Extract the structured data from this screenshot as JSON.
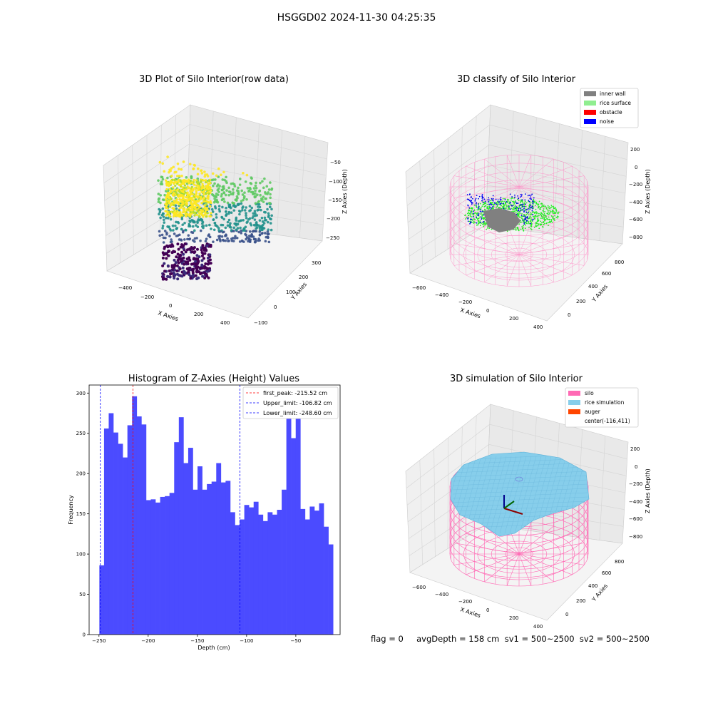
{
  "suptitle": "HSGGD02 2024-11-30 04:25:35",
  "footer": "flag = 0     avgDepth = 158 cm  sv1 = 500~2500  sv2 = 500~2500",
  "chart_data": [
    {
      "type": "scatter",
      "title": "3D Plot of Silo Interior(row data)",
      "xlabel": "X Axies",
      "ylabel": "Y Axies",
      "zlabel": "Z Axies (Depth)",
      "x_ticks": [
        "−400",
        "−200",
        "0",
        "200",
        "400"
      ],
      "y_ticks": [
        "−100",
        "0",
        "100",
        "200",
        "300"
      ],
      "z_ticks": [
        "−50",
        "−100",
        "−150",
        "−200",
        "−250"
      ],
      "colormap": "viridis"
    },
    {
      "type": "scatter",
      "title": "3D classify of Silo Interior",
      "xlabel": "X Axies",
      "ylabel": "Y Axies",
      "zlabel": "Z Axies (Depth)",
      "x_ticks": [
        "−600",
        "−400",
        "−200",
        "0",
        "200",
        "400"
      ],
      "y_ticks": [
        "0",
        "200",
        "400",
        "600",
        "800"
      ],
      "z_ticks": [
        "200",
        "0",
        "−200",
        "−400",
        "−600",
        "−800"
      ],
      "legend": [
        {
          "label": "inner wall",
          "color": "#808080"
        },
        {
          "label": "rice surface",
          "color": "#90ee90"
        },
        {
          "label": "obstacle",
          "color": "#ff0000"
        },
        {
          "label": "noise",
          "color": "#0000ff"
        }
      ],
      "legend_position": "top-right"
    },
    {
      "type": "bar",
      "title": "Histogram of Z-Axies (Height) Values",
      "xlabel": "Depth (cm)",
      "ylabel": "Frequency",
      "xlim": [
        -260,
        -5
      ],
      "ylim": [
        0,
        310
      ],
      "x_ticks": [
        -250,
        -200,
        -150,
        -100,
        -50
      ],
      "x_tick_labels": [
        "−250",
        "−200",
        "−150",
        "−100",
        "−50"
      ],
      "y_ticks": [
        0,
        50,
        100,
        150,
        200,
        250,
        300
      ],
      "bin_start": -249.6,
      "bin_width": 4.75,
      "values": [
        86,
        256,
        275,
        251,
        237,
        220,
        260,
        296,
        271,
        261,
        167,
        168,
        164,
        171,
        172,
        176,
        239,
        270,
        213,
        232,
        180,
        209,
        180,
        187,
        190,
        213,
        189,
        191,
        152,
        136,
        143,
        161,
        158,
        165,
        149,
        141,
        152,
        149,
        155,
        180,
        272,
        244,
        268,
        156,
        143,
        159,
        154,
        163,
        134,
        112
      ],
      "bar_color": "#4b4bff",
      "lines": [
        {
          "label": "first_peak: -215.52 cm",
          "x": -215.52,
          "color": "#ff0000"
        },
        {
          "label": "Upper_limit: -106.82 cm",
          "x": -106.82,
          "color": "#0000ff"
        },
        {
          "label": "Lower_limit: -248.60 cm",
          "x": -248.6,
          "color": "#0000ff"
        }
      ],
      "legend_position": "top-right"
    },
    {
      "type": "scatter",
      "title": "3D simulation of Silo Interior",
      "xlabel": "X Axies",
      "ylabel": "Y Axies",
      "zlabel": "Z Axies (Depth)",
      "x_ticks": [
        "−600",
        "−400",
        "−200",
        "0",
        "200",
        "400"
      ],
      "y_ticks": [
        "0",
        "200",
        "400",
        "600",
        "800"
      ],
      "z_ticks": [
        "200",
        "0",
        "−200",
        "−400",
        "−600",
        "−800"
      ],
      "legend": [
        {
          "label": "silo",
          "color": "#ff69b4"
        },
        {
          "label": "rice simulation",
          "color": "#87ceeb"
        },
        {
          "label": "auger",
          "color": "#ff4500"
        },
        {
          "label": "center(-116,411)",
          "color": ""
        }
      ],
      "legend_position": "top-right"
    }
  ]
}
